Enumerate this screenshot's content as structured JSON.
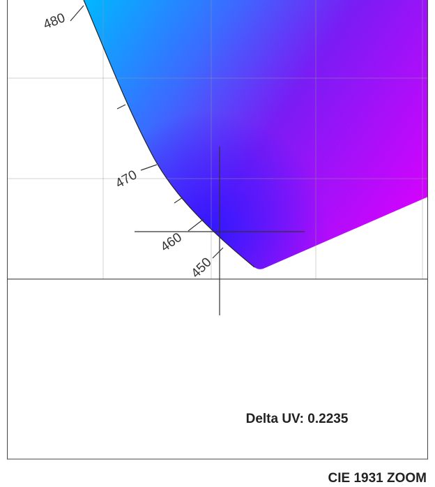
{
  "wavelength_labels": [
    "480",
    "470",
    "460",
    "450"
  ],
  "delta_uv": "Delta UV: 0.2235",
  "caption": "CIE 1931 ZOOM"
}
